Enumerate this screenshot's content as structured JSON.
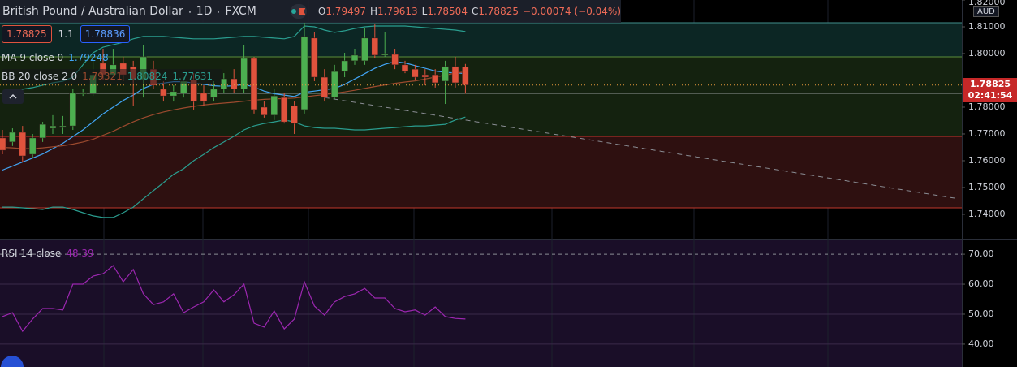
{
  "header": {
    "symbol": "British Pound / Australian Dollar",
    "interval": "1D",
    "source": "FXCM",
    "ohlc": [
      {
        "label": "O",
        "value": "1.79497"
      },
      {
        "label": "H",
        "value": "1.79613"
      },
      {
        "label": "L",
        "value": "1.78504"
      },
      {
        "label": "C",
        "value": "1.78825"
      }
    ],
    "change": "−0.00074 (−0.04%)"
  },
  "trade": {
    "sell": "1.78825",
    "spread": "1.1",
    "buy": "1.78836"
  },
  "price_tag": {
    "price": "1.78825",
    "countdown": "02:41:54"
  },
  "currency": "AUD",
  "chart_data": [
    {
      "type": "candlestick",
      "open": [
        1.7685,
        1.767,
        1.7706,
        1.7624,
        1.7685,
        1.7721,
        1.7724,
        1.773,
        1.7849,
        1.7852,
        1.7964,
        1.7921,
        1.7964,
        1.7952,
        1.7903,
        1.7942,
        1.7867,
        1.7842,
        1.7852,
        1.7903,
        1.7852,
        1.7836,
        1.7867,
        1.7906,
        1.7867,
        1.7982,
        1.78,
        1.777,
        1.7836,
        1.7806,
        1.7791,
        1.8058,
        1.7912,
        1.7836,
        1.7933,
        1.7973,
        1.7973,
        1.8058,
        1.7994,
        1.7997,
        1.7958,
        1.7942,
        1.7921,
        1.7921,
        1.7897,
        1.7952,
        1.79497
      ],
      "high": [
        1.7715,
        1.7721,
        1.773,
        1.77,
        1.7745,
        1.777,
        1.7767,
        1.7867,
        1.7867,
        1.7973,
        1.8018,
        1.8018,
        1.7988,
        1.7973,
        1.8033,
        1.7973,
        1.7897,
        1.7882,
        1.7912,
        1.7927,
        1.7882,
        1.7897,
        1.7927,
        1.7942,
        1.8033,
        1.7988,
        1.7821,
        1.7867,
        1.7852,
        1.7821,
        1.8115,
        1.8079,
        1.7942,
        1.7958,
        1.8003,
        1.8018,
        1.8094,
        1.8109,
        1.8079,
        1.8018,
        1.7973,
        1.7958,
        1.7942,
        1.7942,
        1.7973,
        1.7988,
        1.79613
      ],
      "low": [
        1.7624,
        1.7655,
        1.7594,
        1.7609,
        1.767,
        1.77,
        1.77,
        1.7715,
        1.7842,
        1.7842,
        1.7903,
        1.7912,
        1.7897,
        1.7806,
        1.7836,
        1.7867,
        1.7821,
        1.7821,
        1.7836,
        1.7791,
        1.7806,
        1.7821,
        1.7852,
        1.7852,
        1.7852,
        1.7776,
        1.7761,
        1.7752,
        1.7739,
        1.77,
        1.7776,
        1.7897,
        1.7821,
        1.783,
        1.7912,
        1.7958,
        1.7958,
        1.7982,
        1.7988,
        1.7942,
        1.7927,
        1.7903,
        1.7882,
        1.7873,
        1.7812,
        1.7873,
        1.78504
      ],
      "close": [
        1.7639,
        1.7706,
        1.7618,
        1.7685,
        1.7736,
        1.773,
        1.773,
        1.7852,
        1.7855,
        1.7921,
        1.7921,
        1.7958,
        1.7921,
        1.7903,
        1.7988,
        1.7882,
        1.7842,
        1.7858,
        1.7897,
        1.7821,
        1.7821,
        1.7867,
        1.7906,
        1.7867,
        1.7982,
        1.7791,
        1.777,
        1.7842,
        1.7745,
        1.7739,
        1.8064,
        1.7912,
        1.7836,
        1.7933,
        1.7973,
        1.7994,
        1.8058,
        1.7994,
        1.8,
        1.7958,
        1.7933,
        1.7912,
        1.7912,
        1.7891,
        1.7952,
        1.7891,
        1.78825
      ],
      "up_color": "#4caf50",
      "down_color": "#e0533d",
      "last_price_color": "#e89a3c",
      "ylim": [
        1.7312,
        1.82
      ],
      "yticks": [
        {
          "value": 1.82,
          "label": "1.82000"
        },
        {
          "value": 1.81,
          "label": "1.81000"
        },
        {
          "value": 1.8,
          "label": "1.80000"
        },
        {
          "value": 1.78,
          "label": "1.78000"
        },
        {
          "value": 1.77,
          "label": "1.77000"
        },
        {
          "value": 1.76,
          "label": "1.76000"
        },
        {
          "value": 1.75,
          "label": "1.75000"
        },
        {
          "value": 1.74,
          "label": "1.74000"
        }
      ],
      "grid": false,
      "zones": [
        {
          "from": 1.7988,
          "to": 1.8115,
          "color": "#0c2624",
          "line_color": "#3f8f8c"
        },
        {
          "from": 1.7691,
          "to": 1.7988,
          "color": "#14220f",
          "line_color": "#5c8f3a"
        },
        {
          "from": 1.7424,
          "to": 1.7691,
          "color": "#2e1010",
          "line_color": "#c0392b"
        }
      ],
      "levels": [
        {
          "value": 1.7852,
          "color": "#b8bcc4"
        }
      ],
      "trend_line": {
        "x": [
          32,
          95
        ],
        "values": [
          1.7836,
          1.7458
        ],
        "color": "#8a8d94"
      },
      "indicators": [
        {
          "name": "MA 9 close 0",
          "value_labels": [
            "1.79248"
          ],
          "lines": [
            {
              "color": "#42a5f5",
              "values": [
                1.7565,
                1.758,
                1.7595,
                1.761,
                1.7625,
                1.7645,
                1.7665,
                1.769,
                1.7715,
                1.7745,
                1.7775,
                1.78,
                1.7825,
                1.7845,
                1.787,
                1.7885,
                1.789,
                1.7895,
                1.7895,
                1.789,
                1.7885,
                1.788,
                1.7878,
                1.788,
                1.7885,
                1.7875,
                1.786,
                1.785,
                1.7845,
                1.784,
                1.7855,
                1.786,
                1.7865,
                1.787,
                1.7885,
                1.7905,
                1.7925,
                1.7945,
                1.796,
                1.797,
                1.7965,
                1.7955,
                1.7945,
                1.7935,
                1.793,
                1.7928,
                1.7925
              ]
            }
          ]
        },
        {
          "name": "BB 20 close 2 0",
          "value_labels": [
            "1.79321",
            "1.80824",
            "1.77631"
          ],
          "lines": [
            {
              "color": "#9c4a2e",
              "values": [
                1.765,
                1.7648,
                1.7645,
                1.7645,
                1.7648,
                1.7652,
                1.7656,
                1.7662,
                1.767,
                1.768,
                1.7695,
                1.771,
                1.7728,
                1.7745,
                1.776,
                1.7772,
                1.7782,
                1.779,
                1.7797,
                1.7803,
                1.7808,
                1.7812,
                1.7815,
                1.7818,
                1.7822,
                1.7826,
                1.7829,
                1.7831,
                1.7832,
                1.7834,
                1.7838,
                1.7843,
                1.7847,
                1.7852,
                1.7857,
                1.7863,
                1.787,
                1.7877,
                1.7883,
                1.7889,
                1.7894,
                1.7898,
                1.7905,
                1.7912,
                1.792,
                1.7927,
                1.7932
              ]
            },
            {
              "color": "#2a9d8f",
              "values": [
                1.7852,
                1.7858,
                1.7867,
                1.7873,
                1.7882,
                1.7891,
                1.7897,
                1.7912,
                1.7958,
                1.8003,
                1.8024,
                1.8033,
                1.8042,
                1.8055,
                1.8064,
                1.8064,
                1.8064,
                1.8061,
                1.8058,
                1.8055,
                1.8055,
                1.8055,
                1.8058,
                1.8061,
                1.8064,
                1.8064,
                1.8061,
                1.8058,
                1.8055,
                1.8064,
                1.8103,
                1.81,
                1.8088,
                1.8079,
                1.8085,
                1.8094,
                1.81,
                1.8103,
                1.8103,
                1.8103,
                1.8103,
                1.81,
                1.8097,
                1.8094,
                1.8091,
                1.8088,
                1.8082
              ]
            },
            {
              "color": "#2a9d8f",
              "values": [
                1.7427,
                1.7427,
                1.7424,
                1.7421,
                1.7418,
                1.7427,
                1.7427,
                1.7418,
                1.7406,
                1.7394,
                1.7388,
                1.7388,
                1.7406,
                1.7427,
                1.7458,
                1.7488,
                1.7518,
                1.7549,
                1.757,
                1.76,
                1.7624,
                1.7649,
                1.767,
                1.7691,
                1.7715,
                1.773,
                1.7739,
                1.7745,
                1.7752,
                1.7745,
                1.773,
                1.7724,
                1.7721,
                1.7721,
                1.7718,
                1.7715,
                1.7715,
                1.7718,
                1.7721,
                1.7724,
                1.7727,
                1.773,
                1.773,
                1.7733,
                1.7736,
                1.7752,
                1.7763
              ]
            }
          ]
        }
      ]
    },
    {
      "type": "line",
      "name": "RSI 14 close",
      "value_label": "48.39",
      "color": "#9c27b0",
      "values": [
        49.2,
        50.5,
        44.3,
        48.4,
        51.9,
        51.9,
        51.4,
        60.0,
        60.0,
        62.7,
        63.5,
        66.2,
        60.8,
        64.9,
        56.8,
        53.2,
        54.1,
        56.8,
        50.5,
        52.4,
        54.1,
        58.1,
        54.1,
        56.5,
        60.0,
        47.0,
        45.7,
        51.1,
        45.1,
        48.4,
        60.8,
        52.7,
        49.7,
        54.1,
        55.9,
        56.8,
        58.6,
        55.4,
        55.4,
        51.9,
        50.8,
        51.4,
        49.7,
        52.4,
        49.2,
        48.6,
        48.39
      ],
      "ylim": [
        32.4,
        74.9
      ],
      "yticks": [
        {
          "value": 70,
          "label": "70.00"
        },
        {
          "value": 60,
          "label": "60.00"
        },
        {
          "value": 50,
          "label": "50.00"
        },
        {
          "value": 40,
          "label": "40.00"
        }
      ],
      "grid": true
    }
  ]
}
